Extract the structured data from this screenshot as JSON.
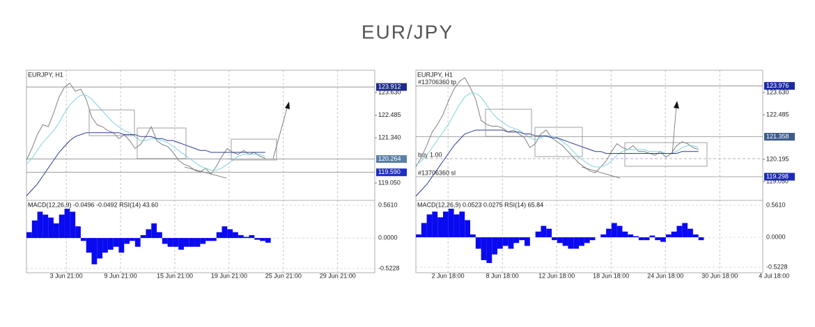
{
  "title": "EUR/JPY",
  "chart_data": [
    {
      "type": "line",
      "title": "EURJPY, H1",
      "x": [
        0,
        12,
        24,
        36,
        48,
        60,
        72,
        84,
        96,
        108,
        120,
        132,
        144,
        156,
        168,
        180,
        192,
        204,
        216,
        228,
        240,
        252,
        264,
        276,
        288,
        300,
        312,
        324,
        336,
        348,
        360,
        372,
        384,
        396,
        408,
        420,
        432,
        444,
        456,
        468,
        480,
        492,
        504,
        516,
        528
      ],
      "xlim": [
        0,
        770
      ],
      "xticks": [
        {
          "value": 88,
          "label": "3 Jun 21:00"
        },
        {
          "value": 208,
          "label": "9 Jun 21:00"
        },
        {
          "value": 328,
          "label": "15 Jun 21:00"
        },
        {
          "value": 448,
          "label": "19 Jun 21:00"
        },
        {
          "value": 568,
          "label": "25 Jun 21:00"
        },
        {
          "value": 688,
          "label": "29 Jun 21:00"
        }
      ],
      "ylim": [
        118.17,
        124.76
      ],
      "yticks": [
        {
          "value": 123.63,
          "label": "123.630"
        },
        122.485,
        {
          "value": 121.34,
          "label": "121.340"
        },
        {
          "value": 119.05,
          "label": "119.050"
        }
      ],
      "grid": true,
      "series": [
        {
          "color": "#8a8a8a",
          "values": [
            120.2,
            120.8,
            121.5,
            122.0,
            121.9,
            122.6,
            123.4,
            123.9,
            124.1,
            123.7,
            123.8,
            123.3,
            122.4,
            122.0,
            121.9,
            121.7,
            121.6,
            121.3,
            121.5,
            121.2,
            120.8,
            121.0,
            121.4,
            121.9,
            121.2,
            121.0,
            120.9,
            120.6,
            120.2,
            120.0,
            119.9,
            119.7,
            119.6,
            119.8,
            119.5,
            119.9,
            120.4,
            120.8,
            120.6,
            120.5,
            120.7,
            120.5,
            120.6,
            120.4,
            120.3
          ]
        },
        {
          "color": "#7fd3df",
          "values": [
            120.0,
            120.3,
            120.7,
            121.1,
            121.4,
            121.7,
            122.1,
            122.6,
            123.0,
            123.3,
            123.5,
            123.5,
            123.3,
            123.0,
            122.7,
            122.4,
            122.1,
            121.9,
            121.7,
            121.6,
            121.4,
            121.2,
            121.2,
            121.3,
            121.3,
            121.2,
            121.1,
            120.9,
            120.7,
            120.5,
            120.3,
            120.1,
            119.9,
            119.8,
            119.7,
            119.7,
            119.8,
            120.0,
            120.2,
            120.4,
            120.5,
            120.5,
            120.5,
            120.5,
            120.4
          ]
        },
        {
          "color": "#2b3a8f",
          "values": [
            118.4,
            118.7,
            119.0,
            119.4,
            119.8,
            120.2,
            120.6,
            120.9,
            121.2,
            121.4,
            121.5,
            121.6,
            121.6,
            121.6,
            121.6,
            121.6,
            121.6,
            121.6,
            121.5,
            121.5,
            121.5,
            121.4,
            121.4,
            121.4,
            121.3,
            121.3,
            121.2,
            121.2,
            121.1,
            121.0,
            120.9,
            120.8,
            120.7,
            120.7,
            120.6,
            120.6,
            120.6,
            120.6,
            120.6,
            120.6,
            120.6,
            120.6,
            120.6,
            120.6,
            120.6
          ]
        }
      ],
      "levels": [
        {
          "value": 123.912,
          "color": "#1d2b8c"
        },
        {
          "value": 120.264,
          "color": "#5b7fa6"
        },
        {
          "value": 119.59,
          "label": "119.590",
          "color": "#2030c0"
        }
      ],
      "indicator": {
        "type": "bar",
        "title": "MACD(12,26,9) -0.0496 -0.0492 RSI(14) 43.60",
        "color": "#0a0af0",
        "values": [
          0.1,
          0.3,
          0.45,
          0.4,
          0.35,
          0.25,
          0.4,
          0.5,
          0.45,
          0.2,
          -0.05,
          -0.25,
          -0.45,
          -0.35,
          -0.25,
          -0.2,
          -0.15,
          -0.25,
          -0.1,
          -0.05,
          -0.15,
          0.05,
          0.15,
          0.25,
          0.1,
          -0.1,
          -0.15,
          -0.15,
          -0.2,
          -0.15,
          -0.15,
          -0.15,
          -0.1,
          -0.05,
          -0.05,
          0.1,
          0.2,
          0.15,
          0.1,
          0.05,
          0.02,
          0.05,
          -0.03,
          -0.05,
          -0.08
        ],
        "ylim": [
          -0.594,
          0.644
        ],
        "yticks": [
          {
            "value": 0.561,
            "label": "0.5610"
          },
          {
            "value": 0,
            "label": "0.0000"
          },
          -0.5228
        ]
      }
    },
    {
      "type": "line",
      "title": "EURJPY, H1",
      "x": [
        0,
        12,
        24,
        36,
        48,
        60,
        72,
        84,
        96,
        108,
        120,
        132,
        144,
        156,
        168,
        180,
        192,
        204,
        216,
        228,
        240,
        252,
        264,
        276,
        288,
        300,
        312,
        324,
        336,
        348,
        360,
        372,
        384,
        396,
        408,
        420,
        432,
        444,
        456,
        468,
        480,
        492,
        504,
        516,
        528,
        540,
        552,
        564,
        576,
        588,
        600,
        612,
        624
      ],
      "xlim": [
        0,
        766
      ],
      "xticks": [
        {
          "value": 71,
          "label": "2 Jun 18:00"
        },
        {
          "value": 191,
          "label": "8 Jun 18:00"
        },
        {
          "value": 311,
          "label": "12 Jun 18:00"
        },
        {
          "value": 431,
          "label": "18 Jun 18:00"
        },
        {
          "value": 551,
          "label": "24 Jun 18:00"
        },
        {
          "value": 671,
          "label": "30 Jun 18:00"
        },
        {
          "value": 791,
          "label": "4 Jul 18:00"
        }
      ],
      "ylim": [
        118.08,
        124.78
      ],
      "yticks": [
        {
          "value": 123.63,
          "label": "123.630"
        },
        122.485,
        120.195,
        {
          "value": 119.05,
          "label": "119.050"
        }
      ],
      "grid": true,
      "series": [
        {
          "color": "#8a8a8a",
          "values": [
            119.8,
            120.3,
            120.9,
            121.6,
            122.0,
            122.5,
            123.2,
            123.8,
            124.2,
            124.4,
            123.9,
            123.3,
            122.2,
            122.0,
            121.9,
            121.9,
            121.8,
            121.6,
            121.7,
            121.5,
            121.3,
            120.8,
            121.0,
            121.5,
            121.7,
            121.3,
            121.1,
            120.9,
            120.6,
            120.3,
            120.0,
            119.8,
            119.6,
            119.5,
            119.8,
            120.1,
            120.6,
            121.0,
            120.8,
            120.7,
            120.9,
            120.6,
            120.6,
            120.5,
            120.4,
            120.6,
            120.3,
            120.5,
            120.9,
            121.1,
            121.0,
            120.8,
            120.7
          ]
        },
        {
          "color": "#7fd3df",
          "values": [
            119.9,
            120.1,
            120.4,
            120.8,
            121.2,
            121.6,
            122.0,
            122.5,
            123.0,
            123.4,
            123.6,
            123.6,
            123.4,
            123.0,
            122.6,
            122.3,
            122.1,
            121.9,
            121.8,
            121.7,
            121.5,
            121.3,
            121.2,
            121.3,
            121.4,
            121.4,
            121.3,
            121.1,
            120.9,
            120.6,
            120.3,
            120.1,
            119.9,
            119.8,
            119.8,
            119.9,
            120.1,
            120.4,
            120.6,
            120.7,
            120.7,
            120.7,
            120.7,
            120.6,
            120.6,
            120.6,
            120.5,
            120.5,
            120.6,
            120.8,
            120.9,
            120.9,
            120.8
          ]
        },
        {
          "color": "#2b3a8f",
          "values": [
            118.3,
            118.6,
            118.9,
            119.3,
            119.7,
            120.1,
            120.5,
            120.9,
            121.2,
            121.5,
            121.6,
            121.7,
            121.7,
            121.7,
            121.7,
            121.7,
            121.7,
            121.6,
            121.6,
            121.6,
            121.5,
            121.5,
            121.4,
            121.4,
            121.4,
            121.3,
            121.3,
            121.2,
            121.1,
            121.0,
            120.9,
            120.8,
            120.7,
            120.6,
            120.6,
            120.5,
            120.5,
            120.5,
            120.5,
            120.5,
            120.5,
            120.5,
            120.5,
            120.5,
            120.5,
            120.5,
            120.5,
            120.5,
            120.5,
            120.6,
            120.6,
            120.6,
            120.6
          ]
        }
      ],
      "levels": [
        {
          "value": 123.976,
          "color": "#1d2ba0",
          "text": "#13706360 tp"
        },
        {
          "value": 121.358,
          "color": "#3d5c8c"
        },
        {
          "value": 120.23,
          "text": "buy 1.00",
          "dashed": true
        },
        {
          "value": 119.298,
          "color": "#1c2ab4",
          "text": "#13706360 sl"
        }
      ],
      "indicator": {
        "type": "bar",
        "title": "MACD(12,26,9) 0.0523 0.0275 RSI(14) 65.84",
        "color": "#0a0af0",
        "values": [
          0.05,
          0.25,
          0.4,
          0.45,
          0.35,
          0.45,
          0.5,
          0.4,
          0.45,
          0.3,
          0.05,
          -0.2,
          -0.4,
          -0.45,
          -0.3,
          -0.2,
          -0.15,
          -0.2,
          -0.1,
          -0.05,
          -0.15,
          0.0,
          0.1,
          0.2,
          0.15,
          -0.05,
          -0.1,
          -0.15,
          -0.2,
          -0.2,
          -0.15,
          -0.1,
          -0.05,
          0.0,
          0.05,
          0.15,
          0.25,
          0.2,
          0.1,
          0.05,
          0.02,
          -0.05,
          -0.05,
          0.03,
          -0.05,
          -0.08,
          0.05,
          0.1,
          0.2,
          0.25,
          0.15,
          0.05,
          -0.05
        ],
        "ylim": [
          -0.62,
          0.646
        ],
        "yticks": [
          {
            "value": 0.561,
            "label": "0.5610"
          },
          {
            "value": 0,
            "label": "0.0000"
          },
          -0.5228
        ]
      }
    }
  ]
}
